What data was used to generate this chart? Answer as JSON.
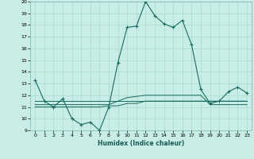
{
  "title": "",
  "xlabel": "Humidex (Indice chaleur)",
  "ylabel": "",
  "bg_color": "#c8ece6",
  "line_color": "#1a6b62",
  "grid_color": "#a8d8d0",
  "x": [
    0,
    1,
    2,
    3,
    4,
    5,
    6,
    7,
    8,
    9,
    10,
    11,
    12,
    13,
    14,
    15,
    16,
    17,
    18,
    19,
    20,
    21,
    22,
    23
  ],
  "y_main": [
    13.3,
    11.5,
    11.0,
    11.7,
    10.0,
    9.5,
    9.7,
    9.0,
    11.0,
    14.8,
    17.8,
    17.9,
    20.0,
    18.8,
    18.1,
    17.8,
    18.4,
    16.3,
    12.5,
    11.3,
    11.5,
    12.3,
    12.7,
    12.2
  ],
  "y_line2": [
    11.5,
    11.5,
    11.5,
    11.5,
    11.5,
    11.5,
    11.5,
    11.5,
    11.5,
    11.5,
    11.5,
    11.5,
    11.5,
    11.5,
    11.5,
    11.5,
    11.5,
    11.5,
    11.5,
    11.5,
    11.5,
    11.5,
    11.5,
    11.5
  ],
  "y_line3": [
    11.0,
    11.0,
    11.0,
    11.0,
    11.0,
    11.0,
    11.0,
    11.0,
    11.1,
    11.1,
    11.3,
    11.3,
    11.5,
    11.5,
    11.5,
    11.5,
    11.5,
    11.5,
    11.5,
    11.5,
    11.5,
    11.5,
    11.5,
    11.5
  ],
  "y_line4": [
    11.2,
    11.2,
    11.2,
    11.2,
    11.2,
    11.2,
    11.2,
    11.2,
    11.2,
    11.5,
    11.8,
    11.9,
    12.0,
    12.0,
    12.0,
    12.0,
    12.0,
    12.0,
    12.0,
    11.2,
    11.2,
    11.2,
    11.2,
    11.2
  ],
  "ylim": [
    9,
    20
  ],
  "xlim": [
    -0.5,
    23.5
  ],
  "yticks": [
    9,
    10,
    11,
    12,
    13,
    14,
    15,
    16,
    17,
    18,
    19,
    20
  ],
  "xticks": [
    0,
    1,
    2,
    3,
    4,
    5,
    6,
    7,
    8,
    9,
    10,
    11,
    12,
    13,
    14,
    15,
    16,
    17,
    18,
    19,
    20,
    21,
    22,
    23
  ]
}
